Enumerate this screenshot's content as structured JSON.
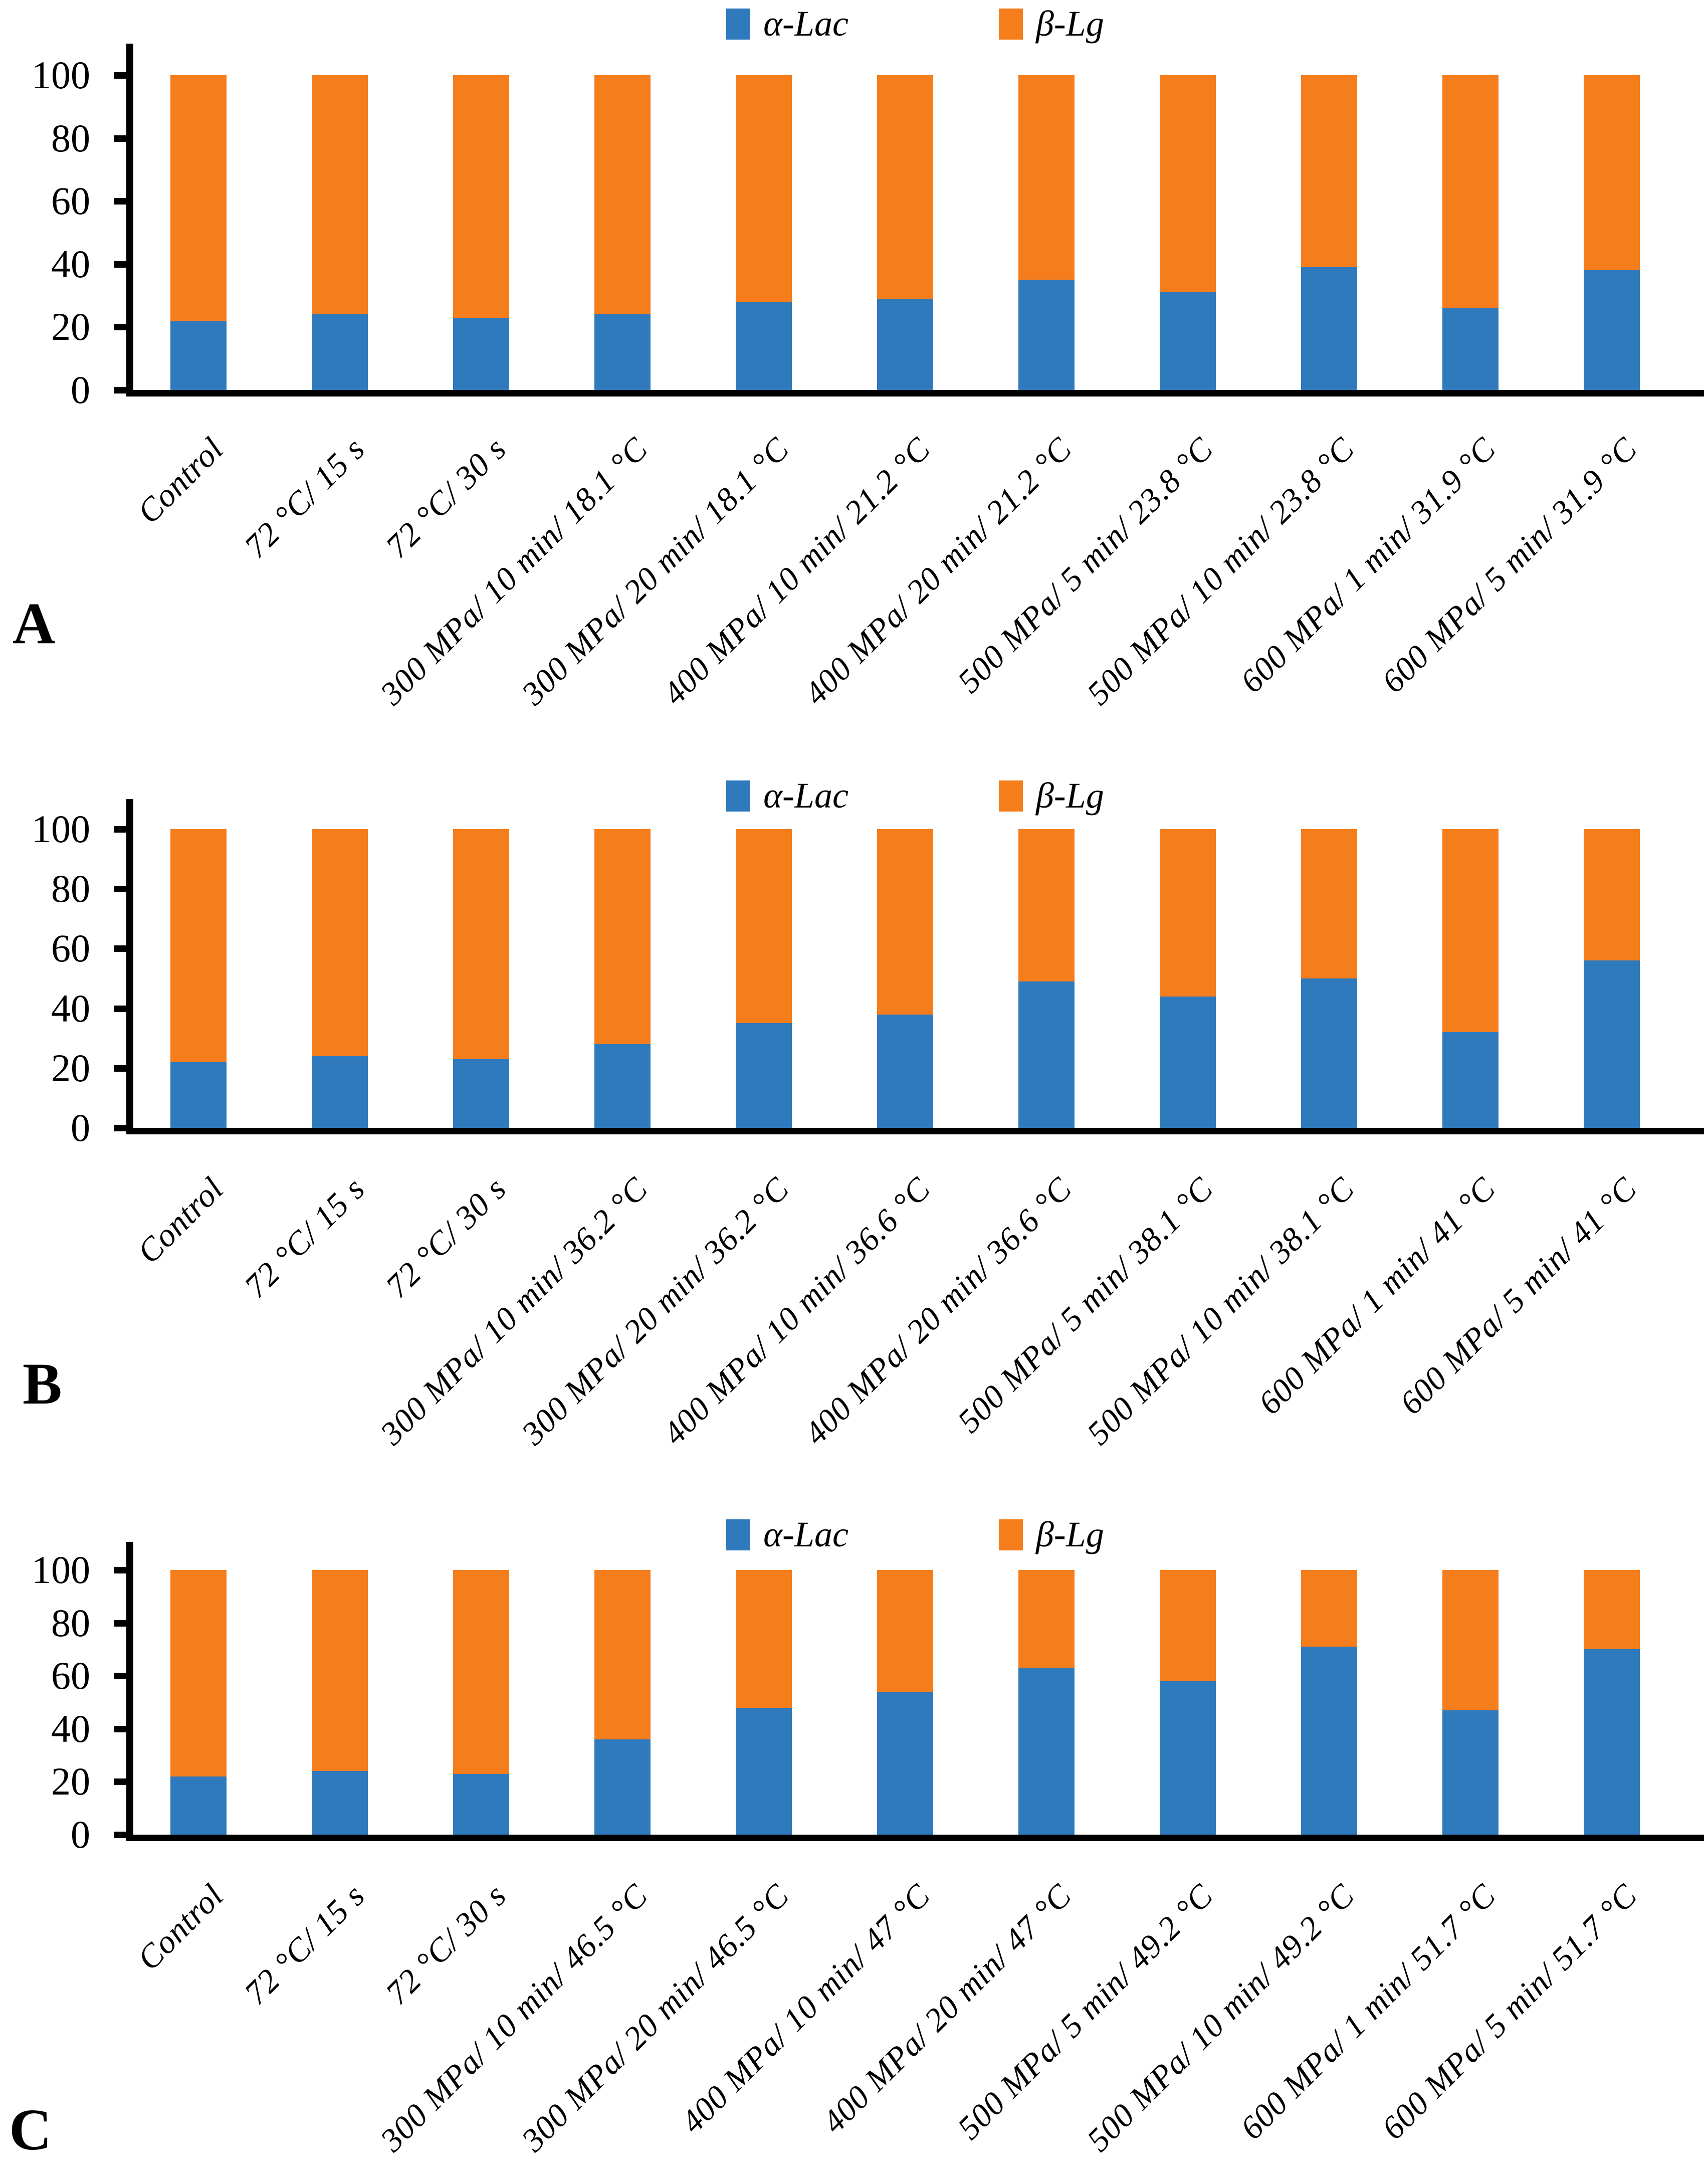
{
  "colors": {
    "alac_blue": "#2E7ABD",
    "blg_orange": "#F57D1B",
    "axis_black": "#000000",
    "background": "#FFFFFF"
  },
  "chart_data": [
    {
      "type": "bar",
      "stacked": true,
      "panel": "A",
      "legend": [
        "α-Lac",
        "β-Lg"
      ],
      "legend_position": "top",
      "grid": false,
      "ylim": [
        0,
        100
      ],
      "yticks": [
        0,
        20,
        40,
        60,
        80,
        100
      ],
      "categories": [
        "Control",
        "72 °C/ 15 s",
        "72 °C/ 30 s",
        "300 MPa/ 10 min/ 18.1 °C",
        "300 MPa/ 20 min/ 18.1 °C",
        "400 MPa/ 10 min/ 21.2 °C",
        "400 MPa/ 20 min/ 21.2 °C",
        "500 MPa/ 5 min/ 23.8 °C",
        "500 MPa/ 10 min/ 23.8 °C",
        "600 MPa/ 1 min/ 31.9 °C",
        "600 MPa/ 5 min/ 31.9 °C"
      ],
      "series": [
        {
          "name": "α-Lac",
          "values": [
            22,
            24,
            23,
            24,
            28,
            29,
            35,
            31,
            39,
            26,
            38
          ]
        },
        {
          "name": "β-Lg",
          "values": [
            78,
            76,
            77,
            76,
            72,
            71,
            65,
            69,
            61,
            74,
            62
          ]
        }
      ]
    },
    {
      "type": "bar",
      "stacked": true,
      "panel": "B",
      "legend": [
        "α-Lac",
        "β-Lg"
      ],
      "legend_position": "top",
      "grid": false,
      "ylim": [
        0,
        100
      ],
      "yticks": [
        0,
        20,
        40,
        60,
        80,
        100
      ],
      "categories": [
        "Control",
        "72 °C/ 15 s",
        "72 °C/ 30 s",
        "300 MPa/ 10 min/ 36.2 °C",
        "300 MPa/ 20 min/ 36.2 °C",
        "400 MPa/ 10 min/ 36.6 °C",
        "400 MPa/ 20 min/ 36.6 °C",
        "500 MPa/ 5 min/ 38.1 °C",
        "500 MPa/ 10 min/ 38.1 °C",
        "600 MPa/ 1 min/ 41 °C",
        "600 MPa/ 5 min/ 41 °C"
      ],
      "series": [
        {
          "name": "α-Lac",
          "values": [
            22,
            24,
            23,
            28,
            35,
            38,
            49,
            44,
            50,
            32,
            56
          ]
        },
        {
          "name": "β-Lg",
          "values": [
            78,
            76,
            77,
            72,
            65,
            62,
            51,
            56,
            50,
            68,
            44
          ]
        }
      ]
    },
    {
      "type": "bar",
      "stacked": true,
      "panel": "C",
      "legend": [
        "α-Lac",
        "β-Lg"
      ],
      "legend_position": "top",
      "grid": false,
      "ylim": [
        0,
        100
      ],
      "yticks": [
        0,
        20,
        40,
        60,
        80,
        100
      ],
      "categories": [
        "Control",
        "72 °C/ 15 s",
        "72 °C/ 30 s",
        "300 MPa/ 10 min/ 46.5 °C",
        "300 MPa/ 20 min/ 46.5 °C",
        "400 MPa/ 10 min/ 47 °C",
        "400 MPa/ 20 min/ 47 °C",
        "500 MPa/ 5 min/ 49.2 °C",
        "500 MPa/ 10 min/ 49.2 °C",
        "600 MPa/ 1 min/ 51.7 °C",
        "600 MPa/ 5 min/ 51.7 °C"
      ],
      "series": [
        {
          "name": "α-Lac",
          "values": [
            22,
            24,
            23,
            36,
            48,
            54,
            63,
            58,
            71,
            47,
            70
          ]
        },
        {
          "name": "β-Lg",
          "values": [
            78,
            76,
            77,
            64,
            52,
            46,
            37,
            42,
            29,
            53,
            30
          ]
        }
      ]
    }
  ]
}
